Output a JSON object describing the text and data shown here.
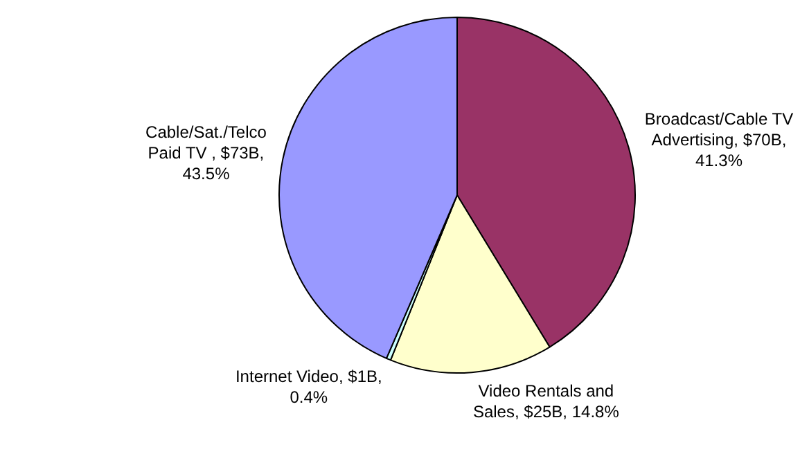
{
  "chart_data": {
    "type": "pie",
    "categories": [
      "Broadcast/Cable TV Advertising",
      "Video Rentals and Sales",
      "Internet Video",
      "Cable/Sat./Telco Paid TV "
    ],
    "values": [
      41.3,
      14.8,
      0.4,
      43.5
    ],
    "colors": [
      "#993366",
      "#ffffcc",
      "#ccffff",
      "#9999ff"
    ],
    "value_labels": [
      "$70B, 41.3%",
      "$25B, 14.8%",
      "$1B, 0.4%",
      "$73B, 43.5%"
    ],
    "legend": false
  }
}
